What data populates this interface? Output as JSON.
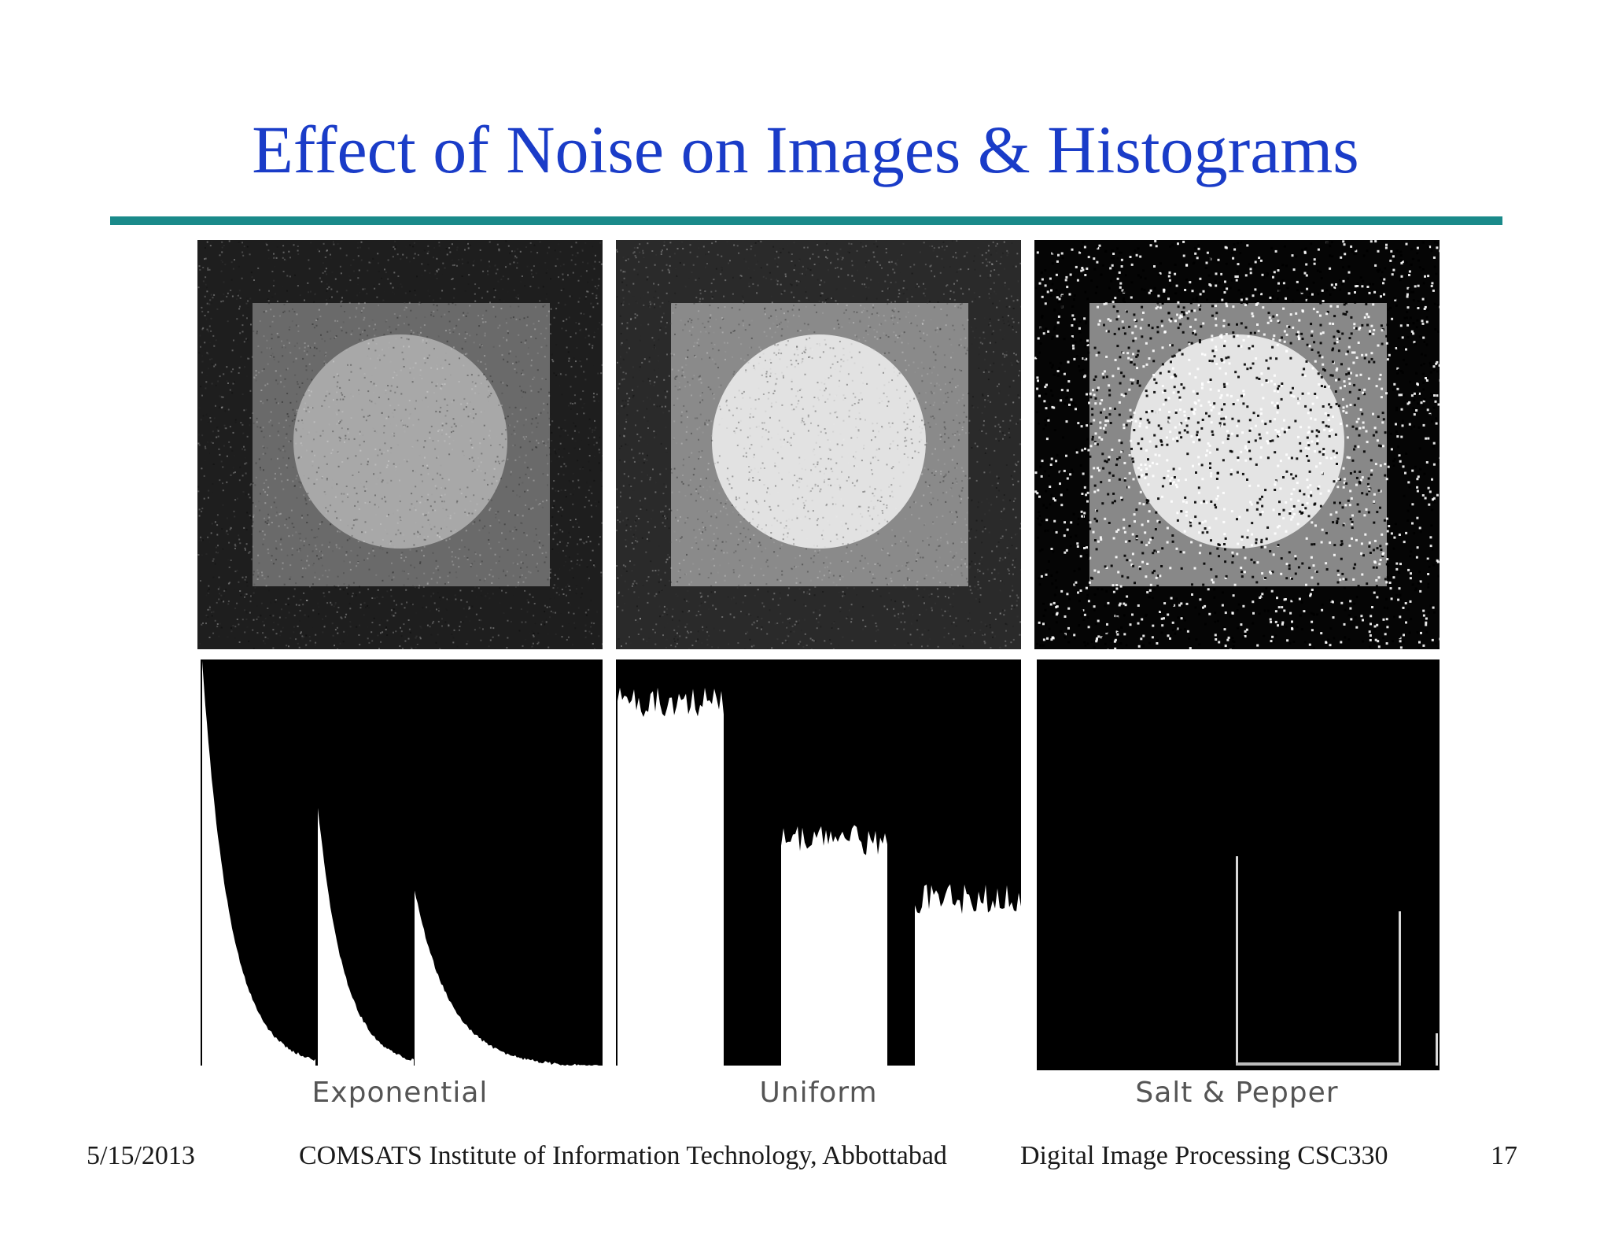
{
  "slide": {
    "title": "Effect of Noise on Images & Histograms",
    "title_color": "#1a3cc8",
    "rule_color": "#1a8a8a"
  },
  "figures": [
    {
      "caption": "Exponential",
      "square_gray": "#6a6a6a",
      "circle_gray": "#a8a8a8",
      "background_gray": "#1e1e1e"
    },
    {
      "caption": "Uniform",
      "square_gray": "#8a8a8a",
      "circle_gray": "#e2e2e2",
      "background_gray": "#2a2a2a"
    },
    {
      "caption": "Salt & Pepper",
      "square_gray": "#888888",
      "circle_gray": "#e4e4e4",
      "background_gray": "#050505"
    }
  ],
  "footer": {
    "date": "5/15/2013",
    "institution": "COMSATS Institute of Information Technology, Abbottabad",
    "course": "Digital Image Processing CSC330",
    "page": "17"
  }
}
